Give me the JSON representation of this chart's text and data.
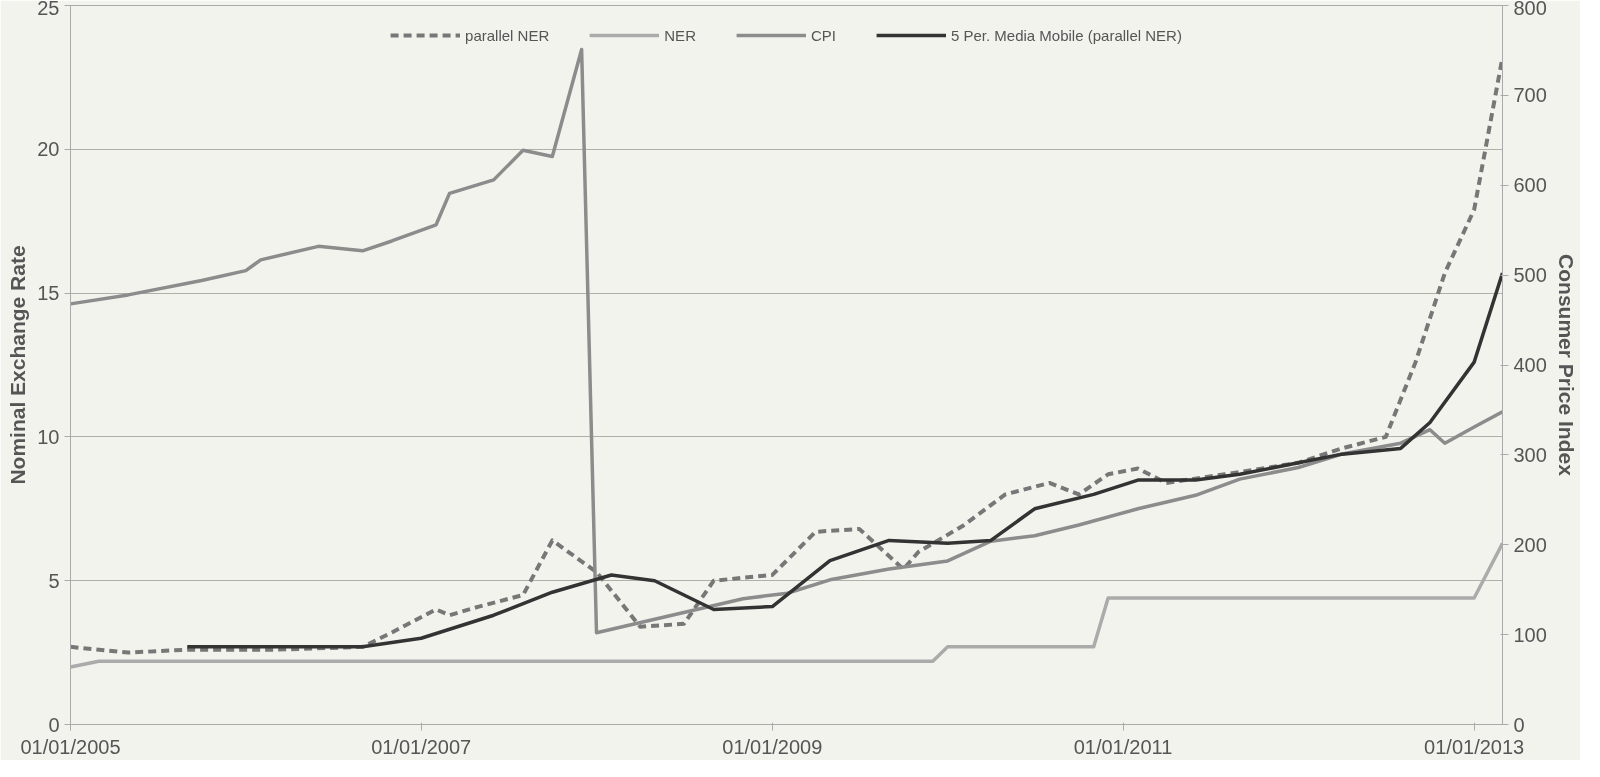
{
  "chart_data": {
    "type": "line",
    "xlabel": null,
    "ylabel": "Nominal Exchange Rate",
    "y2label": "Consumer Price Index",
    "xlim": [
      "2005-01-01",
      "2013-03-01"
    ],
    "xticks": [
      {
        "value": "2005-01-01",
        "label": "01/01/2005"
      },
      {
        "value": "2007-01-01",
        "label": "01/01/2007"
      },
      {
        "value": "2009-01-01",
        "label": "01/01/2009"
      },
      {
        "value": "2011-01-01",
        "label": "01/01/2011"
      },
      {
        "value": "2013-01-01",
        "label": "01/01/2013"
      }
    ],
    "ylim": [
      0,
      25
    ],
    "yticks": [
      0,
      5,
      10,
      15,
      20,
      25
    ],
    "y2lim": [
      0,
      800
    ],
    "y2ticks": [
      0,
      100,
      200,
      300,
      400,
      500,
      600,
      700,
      800
    ],
    "grid": "y",
    "legend": "top",
    "series": [
      {
        "name": "parallel NER",
        "color": "#777777",
        "line_style": "dashed",
        "x": [
          "2005-01",
          "2005-05",
          "2005-09",
          "2006-03",
          "2006-09",
          "2006-11",
          "2007-02",
          "2007-03",
          "2007-05",
          "2007-08",
          "2007-10",
          "2008-01",
          "2008-04",
          "2008-07",
          "2008-09",
          "2009-01",
          "2009-04",
          "2009-07",
          "2009-10",
          "2009-11",
          "2010-02",
          "2010-05",
          "2010-08",
          "2010-10",
          "2010-12",
          "2011-02",
          "2011-04",
          "2011-08",
          "2012-01",
          "2012-04",
          "2012-07",
          "2012-09",
          "2012-11",
          "2013-01",
          "2013-03"
        ],
        "values": [
          2.7,
          2.5,
          2.6,
          2.6,
          2.7,
          3.2,
          4.0,
          3.8,
          4.1,
          4.5,
          6.4,
          5.3,
          3.4,
          3.5,
          5.0,
          5.2,
          6.7,
          6.8,
          5.4,
          6.0,
          6.9,
          8.0,
          8.4,
          8.0,
          8.7,
          8.9,
          8.4,
          8.7,
          9.1,
          9.6,
          10.0,
          12.6,
          15.7,
          17.9,
          23.2
        ]
      },
      {
        "name": "NER",
        "color": "#ababab",
        "line_style": "solid",
        "x": [
          "2005-01",
          "2005-03",
          "2009-12",
          "2010-01",
          "2010-11",
          "2010-12",
          "2013-01",
          "2013-03"
        ],
        "values": [
          2.0,
          2.2,
          2.2,
          2.7,
          2.7,
          4.4,
          4.4,
          6.3
        ]
      },
      {
        "name": "CPI",
        "color": "#8c8c8c",
        "line_style": "solid",
        "axis": "y2",
        "x": [
          "2005-01",
          "2005-05",
          "2005-10",
          "2006-01",
          "2006-02",
          "2006-06",
          "2006-09",
          "2006-11",
          "2007-02",
          "2007-03",
          "2007-06",
          "2007-08",
          "2007-10",
          "2007-12",
          "2008-01",
          "2008-11",
          "2009-02",
          "2009-05",
          "2009-09",
          "2010-01",
          "2010-04",
          "2010-07",
          "2010-10",
          "2011-02",
          "2011-06",
          "2011-09",
          "2012-01",
          "2012-04",
          "2012-08",
          "2012-10",
          "2012-11",
          "2013-01",
          "2013-03"
        ],
        "values": [
          468,
          478,
          494,
          505,
          517,
          532,
          527,
          538,
          556,
          591,
          606,
          639,
          632,
          751,
          102,
          140,
          146,
          161,
          173,
          182,
          204,
          210,
          222,
          240,
          255,
          273,
          286,
          301,
          313,
          328,
          313,
          331,
          348
        ]
      },
      {
        "name": "5 Per. Media Mobile (parallel NER)",
        "color": "#333333",
        "line_style": "solid",
        "x": [
          "2005-09",
          "2006-09",
          "2007-01",
          "2007-06",
          "2007-10",
          "2008-02",
          "2008-05",
          "2008-09",
          "2009-01",
          "2009-05",
          "2009-09",
          "2010-01",
          "2010-04",
          "2010-07",
          "2010-11",
          "2011-02",
          "2011-06",
          "2011-09",
          "2012-01",
          "2012-04",
          "2012-08",
          "2012-10",
          "2013-01",
          "2013-03"
        ],
        "values": [
          2.7,
          2.7,
          3.0,
          3.8,
          4.6,
          5.2,
          5.0,
          4.0,
          4.1,
          5.7,
          6.4,
          6.3,
          6.4,
          7.5,
          8.0,
          8.5,
          8.5,
          8.7,
          9.1,
          9.4,
          9.6,
          10.5,
          12.6,
          15.7
        ]
      }
    ]
  }
}
